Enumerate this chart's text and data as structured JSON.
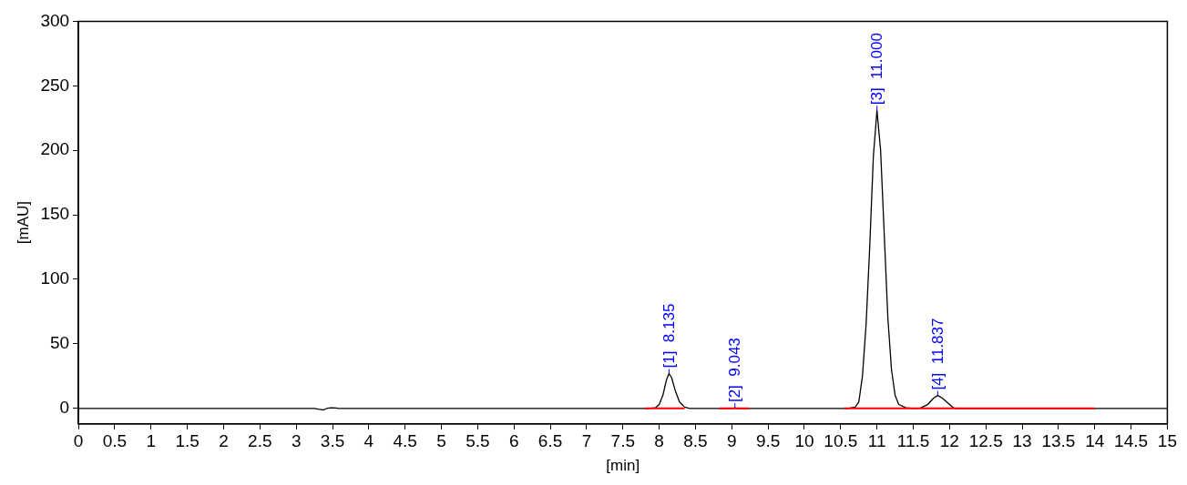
{
  "chart_data": {
    "type": "line",
    "xlabel": "[min]",
    "ylabel": "[mAU]",
    "xlim": [
      0,
      15
    ],
    "xticks": [
      0,
      0.5,
      1,
      1.5,
      2,
      2.5,
      3,
      3.5,
      4,
      4.5,
      5,
      5.5,
      6,
      6.5,
      7,
      7.5,
      8,
      8.5,
      9,
      9.5,
      10,
      10.5,
      11,
      11.5,
      12,
      12.5,
      13,
      13.5,
      14,
      14.5,
      15
    ],
    "ylim": [
      -12,
      300
    ],
    "yticks": [
      0,
      50,
      100,
      150,
      200,
      250,
      300
    ],
    "grid": false,
    "legend": false,
    "marker": "none",
    "line_style": "solid",
    "series": [
      {
        "color": "#000000",
        "x": [
          0,
          3.25,
          3.32,
          3.38,
          3.42,
          3.48,
          3.55,
          3.58,
          7.85,
          7.95,
          8.0,
          8.05,
          8.1,
          8.135,
          8.17,
          8.22,
          8.28,
          8.35,
          8.42,
          9.03,
          9.043,
          9.06,
          10.6,
          10.7,
          10.75,
          10.8,
          10.85,
          10.9,
          10.95,
          11.0,
          11.05,
          11.1,
          11.15,
          11.2,
          11.25,
          11.3,
          11.4,
          11.5,
          11.6,
          11.7,
          11.78,
          11.837,
          11.9,
          12.0,
          12.05,
          12.1,
          15
        ],
        "values": [
          0,
          0,
          -0.8,
          -1.2,
          0,
          0.5,
          0.3,
          0,
          0,
          0.5,
          3,
          10,
          22,
          27,
          24,
          14,
          5,
          1,
          0,
          0,
          0.5,
          0,
          0,
          1,
          5,
          25,
          65,
          125,
          195,
          231,
          200,
          135,
          70,
          30,
          10,
          3,
          0.5,
          0,
          0.3,
          3,
          8,
          10,
          8,
          3,
          0.5,
          0,
          0
        ]
      },
      {
        "color": "#ff0000",
        "x": [
          7.8,
          8.35
        ],
        "values": [
          0,
          0
        ]
      },
      {
        "color": "#ff0000",
        "x": [
          8.83,
          9.24
        ],
        "values": [
          0,
          0
        ]
      },
      {
        "color": "#ff0000",
        "x": [
          10.55,
          14
        ],
        "values": [
          0,
          0
        ]
      }
    ],
    "annotations": [
      {
        "text": "[1]  8.135",
        "x": 8.135,
        "y": 27
      },
      {
        "text": "[2]  9.043",
        "x": 9.043,
        "y": 0.5
      },
      {
        "text": "[3]  11.000",
        "x": 11.0,
        "y": 231
      },
      {
        "text": "[4]  11.837",
        "x": 11.837,
        "y": 10
      }
    ]
  }
}
